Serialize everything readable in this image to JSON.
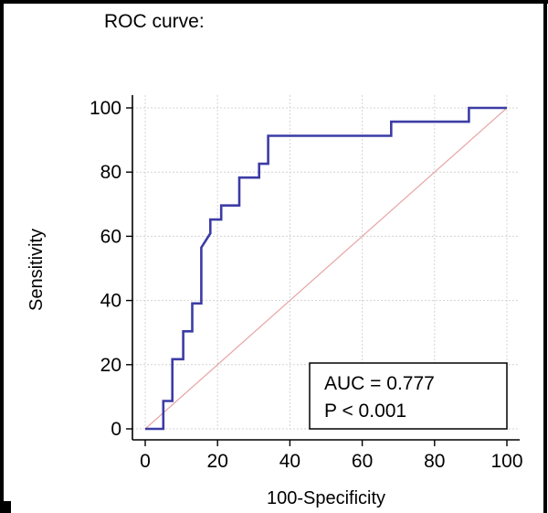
{
  "chart_data": {
    "type": "line",
    "title": "ROC curve:",
    "xlabel": "100-Specificity",
    "ylabel": "Sensitivity",
    "xlim": [
      0,
      100
    ],
    "ylim": [
      0,
      100
    ],
    "xticks": [
      0,
      20,
      40,
      60,
      80,
      100
    ],
    "yticks": [
      0,
      20,
      40,
      60,
      80,
      100
    ],
    "grid": true,
    "series": [
      {
        "x": [
          0,
          5,
          5,
          7.5,
          7.5,
          10.5,
          10.5,
          13,
          13,
          15.5,
          15.5,
          18,
          18,
          21,
          21,
          26,
          26,
          31.5,
          31.5,
          34,
          34,
          68,
          68,
          89.5,
          89.5,
          100
        ],
        "y": [
          0,
          0,
          8.7,
          8.7,
          21.7,
          21.7,
          30.4,
          30.4,
          39.1,
          39.1,
          56.5,
          60.9,
          65.2,
          65.2,
          69.6,
          69.6,
          78.3,
          78.3,
          82.6,
          82.6,
          91.3,
          91.3,
          95.7,
          95.7,
          100,
          100
        ],
        "color": "#3c3ca6"
      }
    ],
    "reference_line": {
      "x": [
        0,
        100
      ],
      "y": [
        0,
        100
      ],
      "color": "#e7a5a5"
    },
    "annotation": {
      "lines": [
        "AUC = 0.777",
        "P < 0.001"
      ],
      "placement": "bottom-right"
    }
  }
}
